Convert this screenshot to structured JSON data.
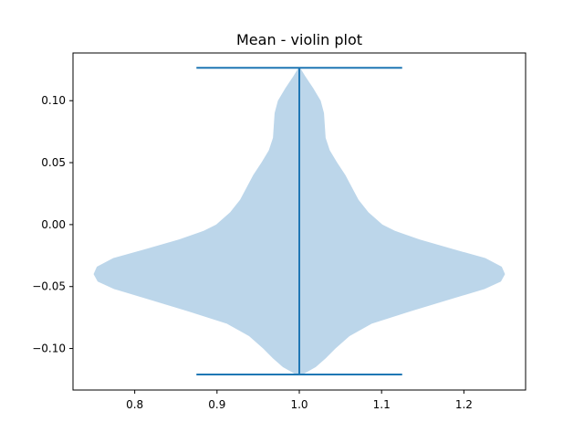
{
  "chart_data": {
    "type": "violin",
    "title": "Mean - violin plot",
    "xlabel": "",
    "ylabel": "",
    "xlim": [
      0.725,
      1.275
    ],
    "ylim": [
      -0.1335,
      0.1385
    ],
    "x_ticks": [
      0.8,
      0.9,
      1.0,
      1.1,
      1.2
    ],
    "x_tick_labels": [
      "0.8",
      "0.9",
      "1.0",
      "1.1",
      "1.2"
    ],
    "y_ticks": [
      0.1,
      0.05,
      0.0,
      -0.05,
      -0.1
    ],
    "y_tick_labels": [
      "0.10",
      "0.05",
      "0.00",
      "−0.05",
      "−0.10"
    ],
    "grid": false,
    "series": [
      {
        "position": 1.0,
        "min": -0.121,
        "max": 0.1265,
        "cap_halfwidth": 0.125,
        "body_color": "#bcd6ea",
        "line_color": "#1f77b4",
        "density_profile": [
          {
            "y": -0.121,
            "half_width": 0.004
          },
          {
            "y": -0.115,
            "half_width": 0.02
          },
          {
            "y": -0.108,
            "half_width": 0.032
          },
          {
            "y": -0.1,
            "half_width": 0.044
          },
          {
            "y": -0.09,
            "half_width": 0.061
          },
          {
            "y": -0.08,
            "half_width": 0.088
          },
          {
            "y": -0.07,
            "half_width": 0.135
          },
          {
            "y": -0.06,
            "half_width": 0.185
          },
          {
            "y": -0.052,
            "half_width": 0.225
          },
          {
            "y": -0.046,
            "half_width": 0.245
          },
          {
            "y": -0.04,
            "half_width": 0.25
          },
          {
            "y": -0.034,
            "half_width": 0.246
          },
          {
            "y": -0.027,
            "half_width": 0.226
          },
          {
            "y": -0.02,
            "half_width": 0.188
          },
          {
            "y": -0.012,
            "half_width": 0.146
          },
          {
            "y": -0.005,
            "half_width": 0.116
          },
          {
            "y": 0.0,
            "half_width": 0.101
          },
          {
            "y": 0.01,
            "half_width": 0.084
          },
          {
            "y": 0.02,
            "half_width": 0.072
          },
          {
            "y": 0.03,
            "half_width": 0.064
          },
          {
            "y": 0.04,
            "half_width": 0.056
          },
          {
            "y": 0.05,
            "half_width": 0.046
          },
          {
            "y": 0.06,
            "half_width": 0.037
          },
          {
            "y": 0.07,
            "half_width": 0.032
          },
          {
            "y": 0.08,
            "half_width": 0.031
          },
          {
            "y": 0.09,
            "half_width": 0.03
          },
          {
            "y": 0.1,
            "half_width": 0.026
          },
          {
            "y": 0.11,
            "half_width": 0.017
          },
          {
            "y": 0.12,
            "half_width": 0.007
          },
          {
            "y": 0.1265,
            "half_width": 0.001
          }
        ]
      }
    ]
  }
}
